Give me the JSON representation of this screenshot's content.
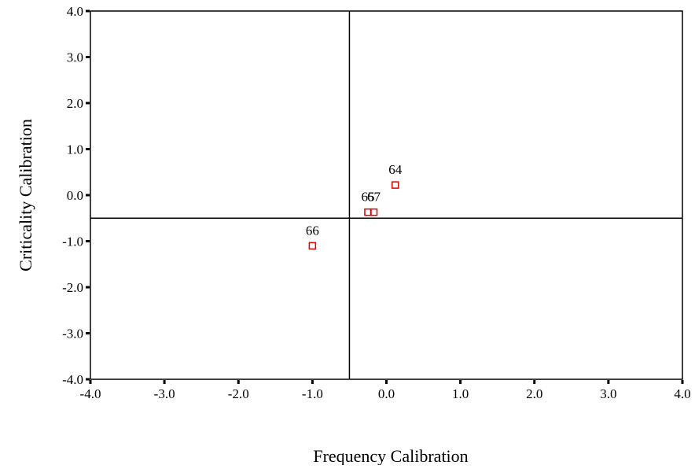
{
  "chart_data": {
    "type": "scatter",
    "title": "",
    "xlabel": "Frequency Calibration",
    "ylabel": "Criticality Calibration",
    "xlim": [
      -4.0,
      4.0
    ],
    "ylim": [
      -4.0,
      4.0
    ],
    "x_ticks": [
      -4.0,
      -3.0,
      -2.0,
      -1.0,
      0.0,
      1.0,
      2.0,
      3.0,
      4.0
    ],
    "y_ticks": [
      -4.0,
      -3.0,
      -2.0,
      -1.0,
      0.0,
      1.0,
      2.0,
      3.0,
      4.0
    ],
    "x_tick_labels": [
      "-4.0",
      "-3.0",
      "-2.0",
      "-1.0",
      "0.0",
      "1.0",
      "2.0",
      "3.0",
      "4.0"
    ],
    "y_tick_labels": [
      "-4.0",
      "-3.0",
      "-2.0",
      "-1.0",
      "0.0",
      "1.0",
      "2.0",
      "3.0",
      "4.0"
    ],
    "reference_lines": {
      "x": -0.5,
      "y": -0.5
    },
    "grid": false,
    "legend": "none",
    "marker": {
      "shape": "open-square",
      "color": "#e00000"
    },
    "points": [
      {
        "label": "64",
        "x": 0.12,
        "y": 0.22
      },
      {
        "label": "65",
        "x": -0.25,
        "y": -0.37
      },
      {
        "label": "67",
        "x": -0.17,
        "y": -0.37
      },
      {
        "label": "66",
        "x": -1.0,
        "y": -1.1
      }
    ]
  }
}
